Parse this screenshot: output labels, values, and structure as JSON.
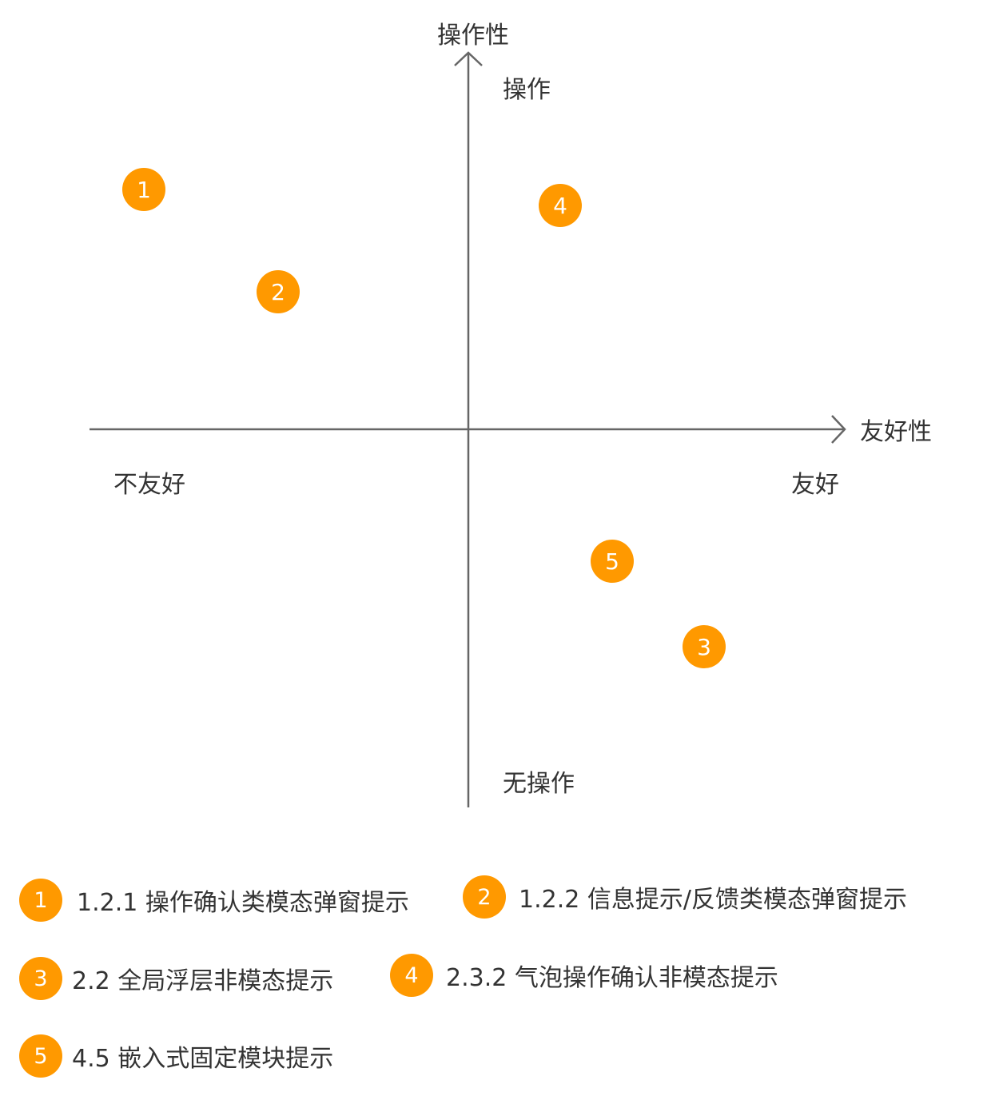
{
  "diagram": {
    "y_axis_title": "操作性",
    "x_axis_title": "友好性",
    "top_label": "操作",
    "bottom_label": "无操作",
    "left_label": "不友好",
    "right_label": "友好",
    "marker_color": "#FF9900",
    "axis_color": "#666666",
    "markers": [
      {
        "id": "1",
        "label": "1"
      },
      {
        "id": "2",
        "label": "2"
      },
      {
        "id": "3",
        "label": "3"
      },
      {
        "id": "4",
        "label": "4"
      },
      {
        "id": "5",
        "label": "5"
      }
    ]
  },
  "legend": [
    {
      "num": "1",
      "text": "1.2.1 操作确认类模态弹窗提示"
    },
    {
      "num": "2",
      "text": "1.2.2 信息提示/反馈类模态弹窗提示"
    },
    {
      "num": "3",
      "text": "2.2 全局浮层非模态提示"
    },
    {
      "num": "4",
      "text": "2.3.2 气泡操作确认非模态提示"
    },
    {
      "num": "5",
      "text": "4.5 嵌入式固定模块提示"
    }
  ]
}
